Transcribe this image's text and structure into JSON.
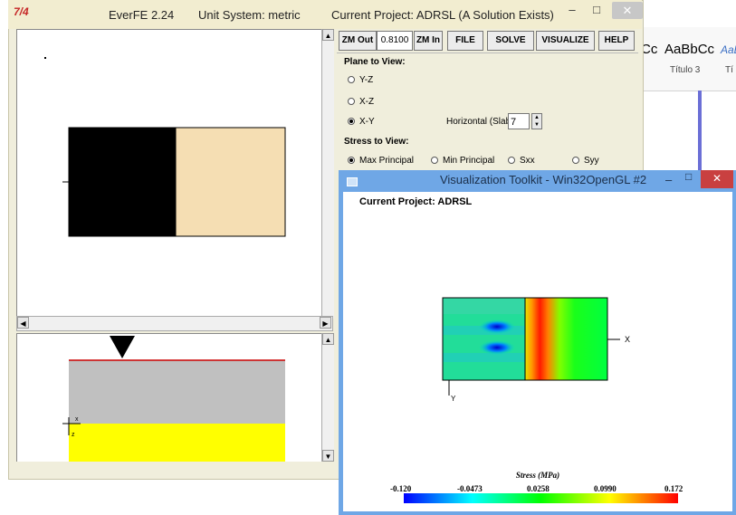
{
  "main_window": {
    "app_title": "EverFE 2.24",
    "unit_system": "Unit System: metric",
    "project_status": "Current Project: ADRSL (A Solution Exists)",
    "minimize_label": "–",
    "maximize_label": "□",
    "close_label": "✕"
  },
  "toolbar": {
    "zoom_out_label": "ZM Out",
    "zoom_value": "0.8100",
    "zoom_in_label": "ZM In",
    "file_label": "FILE",
    "solve_label": "SOLVE",
    "visualize_label": "VISUALIZE",
    "help_label": "HELP"
  },
  "plane_to_view": {
    "label": "Plane to View:",
    "options": [
      "Y-Z",
      "X-Z",
      "X-Y"
    ],
    "selected": "X-Y",
    "slab_label": "Horizontal (Slab)",
    "slab_value": "7"
  },
  "stress_to_view": {
    "label": "Stress to View:",
    "options": [
      "Max Principal",
      "Min Principal",
      "Sxx",
      "Syy"
    ],
    "selected": "Max Principal"
  },
  "bottom_pane": {
    "x_label": "x",
    "z_label": "z"
  },
  "vtk_window": {
    "title": "Visualization Toolkit - Win32OpenGL #2",
    "project": "Current Project: ADRSL",
    "axis_x": "X",
    "axis_y": "Y",
    "legend_title": "Stress (MPa)",
    "legend_ticks": [
      "-0.120",
      "-0.0473",
      "0.0258",
      "0.0990",
      "0.172"
    ],
    "minimize_label": "–",
    "maximize_label": "□",
    "close_label": "✕"
  },
  "word_background": {
    "samples": [
      "Cc",
      "AaBbCc",
      "AaB"
    ],
    "style_names": [
      "Título 3",
      "Tí"
    ]
  },
  "colors": {
    "slab_left": "#000000",
    "slab_right": "#f5deb3",
    "section_top": "#c0c0c0",
    "section_bottom": "#ffff00",
    "section_edge": "#cc0000",
    "window_frame": "#f0eedc",
    "vtk_frame": "#6fa7e6"
  }
}
